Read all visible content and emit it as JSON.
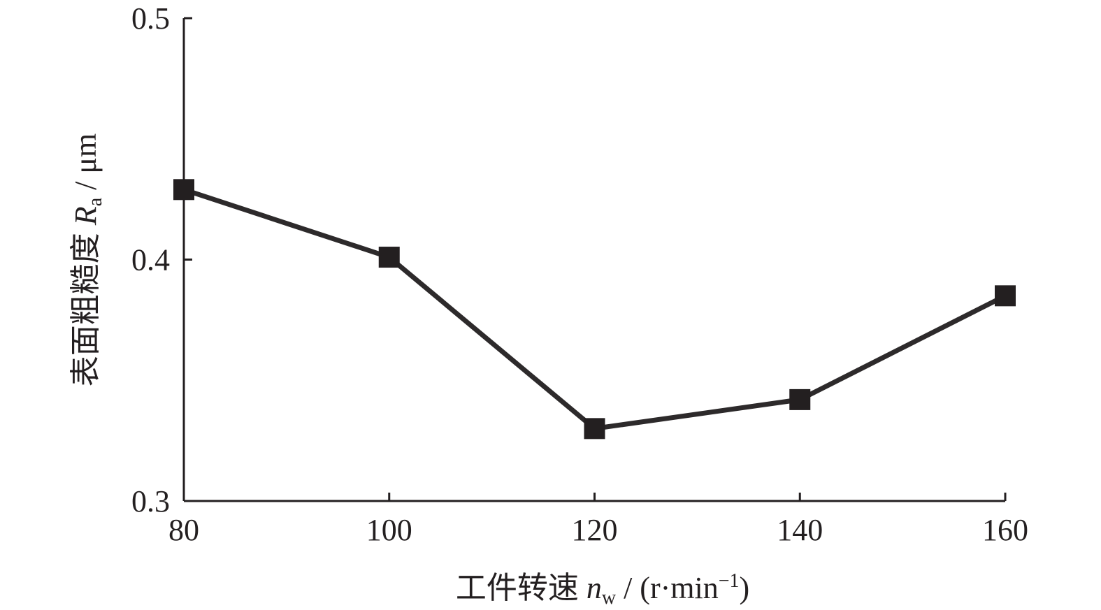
{
  "chart_data": {
    "type": "line",
    "xlabel": {
      "prefix": "工件转速 ",
      "var": "n",
      "sub": "w",
      "unit_open": " / (r·min",
      "sup": "−1",
      "unit_close": ")"
    },
    "ylabel": {
      "prefix": "表面粗糙度 ",
      "var": "R",
      "sub": "a",
      "unit": " / μm"
    },
    "xlim": [
      80,
      160
    ],
    "ylim": [
      0.3,
      0.5
    ],
    "x_ticks": [
      80,
      100,
      120,
      140,
      160
    ],
    "x_tick_labels": [
      "80",
      "100",
      "120",
      "140",
      "160"
    ],
    "y_ticks": [
      0.3,
      0.4,
      0.5
    ],
    "y_tick_labels": [
      "0.3",
      "0.4",
      "0.5"
    ],
    "grid": false,
    "series": [
      {
        "marker": "square",
        "color": "#231f20",
        "x": [
          80,
          100,
          120,
          140,
          160
        ],
        "values": [
          0.429,
          0.401,
          0.33,
          0.342,
          0.385
        ]
      }
    ]
  }
}
